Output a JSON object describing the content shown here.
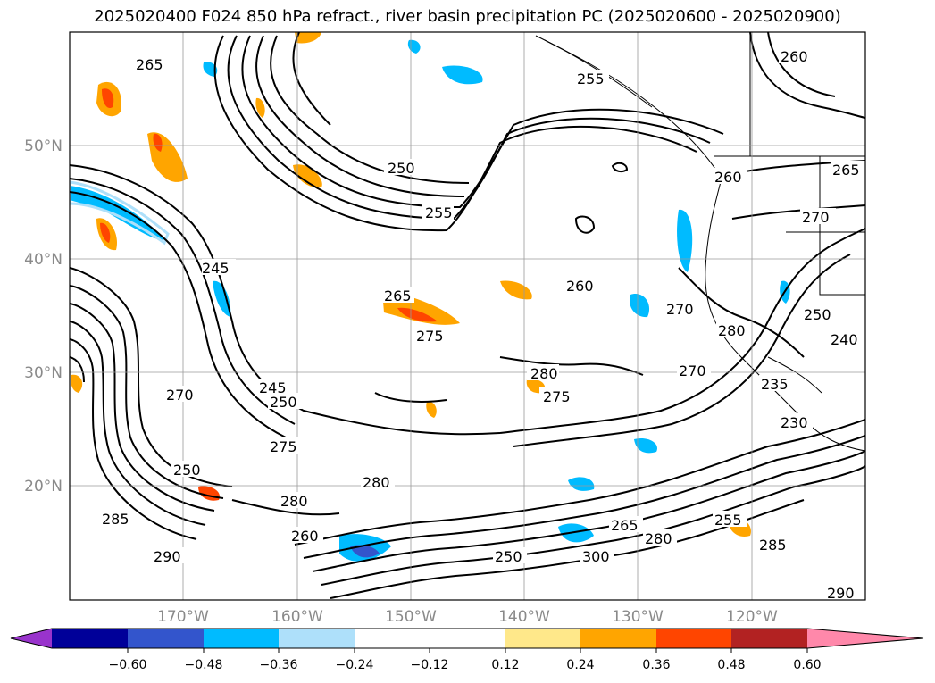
{
  "title": "2025020400 F024 850 hPa refract., river basin precipitation PC (2025020600 - 2025020900)",
  "lat_labels": [
    "50°N",
    "40°N",
    "30°N",
    "20°N"
  ],
  "lon_labels": [
    "170°W",
    "160°W",
    "150°W",
    "140°W",
    "130°W",
    "120°W"
  ],
  "colorbar": {
    "colors": [
      "#9933cc",
      "#000099",
      "#3355cc",
      "#00bbff",
      "#aee0fa",
      "#ffffff",
      "#ffe88a",
      "#ffa500",
      "#ff4500",
      "#b22222",
      "#ff88aa"
    ],
    "labels": [
      "−0.60",
      "−0.48",
      "−0.36",
      "−0.24",
      "−0.12",
      "0.12",
      "0.24",
      "0.36",
      "0.48",
      "0.60"
    ]
  },
  "contour_labels": [
    "265",
    "260",
    "250",
    "255",
    "260",
    "270",
    "265",
    "260",
    "265",
    "275",
    "280",
    "275",
    "270",
    "245",
    "250",
    "270",
    "275",
    "280",
    "285",
    "290",
    "300",
    "280",
    "265",
    "260",
    "250",
    "255",
    "280",
    "285",
    "290",
    "230",
    "250",
    "280",
    "270",
    "235",
    "240",
    "255",
    "245",
    "250"
  ]
}
